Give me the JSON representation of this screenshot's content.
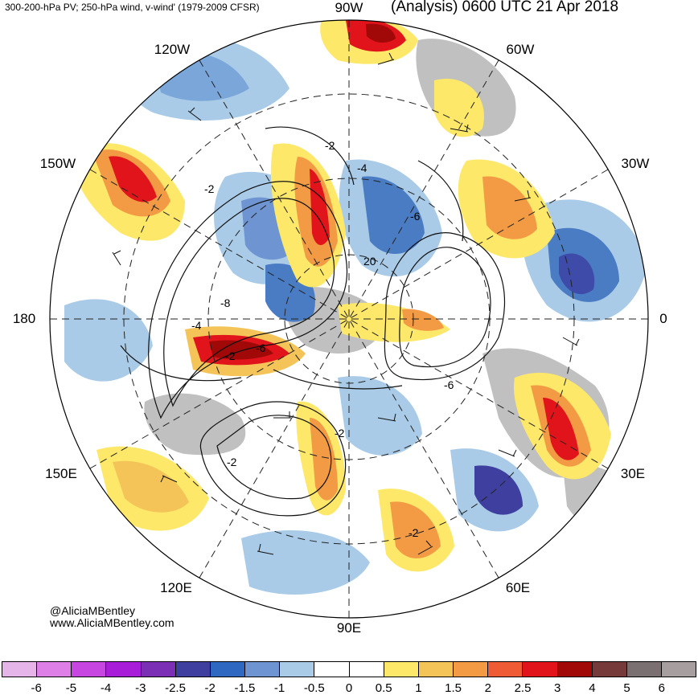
{
  "header": {
    "left_title": "300-200-hPa PV; 250-hPa wind, v-wind' (1979-2009 CFSR)",
    "right_title": "(Analysis) 0600 UTC 21 Apr 2018"
  },
  "credits": {
    "twitter": "@AliciaMBentley",
    "website": "www.AliciaMBentley.com"
  },
  "map": {
    "projection": "polar stereographic (north pole)",
    "longitude_labels": [
      "90W",
      "60W",
      "30W",
      "0",
      "30E",
      "60E",
      "90E",
      "120E",
      "150E",
      "180",
      "150W",
      "120W"
    ],
    "contour_labels": [
      "-2",
      "-4",
      "-6",
      "-8",
      "-2",
      "-6",
      "-2",
      "-6",
      "-2",
      "-2",
      "-4",
      "20",
      "-2"
    ],
    "fill_colors": {
      "positive_anomaly": [
        "#fbe868",
        "#f4c454",
        "#f29d3e",
        "#ef6d37",
        "#e0181c",
        "#a20d0f"
      ],
      "negative_anomaly": [
        "#a8cbe8",
        "#7aa6d9",
        "#4a7cc4",
        "#3e4ba8",
        "#5a2e9e"
      ],
      "land_masked": "#c0c0c0"
    }
  },
  "colorbar": {
    "tick_labels": [
      "-6",
      "-5",
      "-4",
      "-3",
      "-2.5",
      "-2",
      "-1.5",
      "-1",
      "-0.5",
      "0",
      "0.5",
      "1",
      "1.5",
      "2",
      "2.5",
      "3",
      "4",
      "5",
      "6"
    ],
    "colors": [
      "#e5b4e9",
      "#de7fe7",
      "#c745e0",
      "#a81ed8",
      "#7a2fb4",
      "#3e3f9e",
      "#2f68c0",
      "#6e95d2",
      "#a9cbe7",
      "#ffffff",
      "#ffffff",
      "#fde869",
      "#f4c459",
      "#f39a44",
      "#ee5b34",
      "#e0141a",
      "#a10808",
      "#763a3a",
      "#7a6f71",
      "#a79ea0"
    ]
  }
}
